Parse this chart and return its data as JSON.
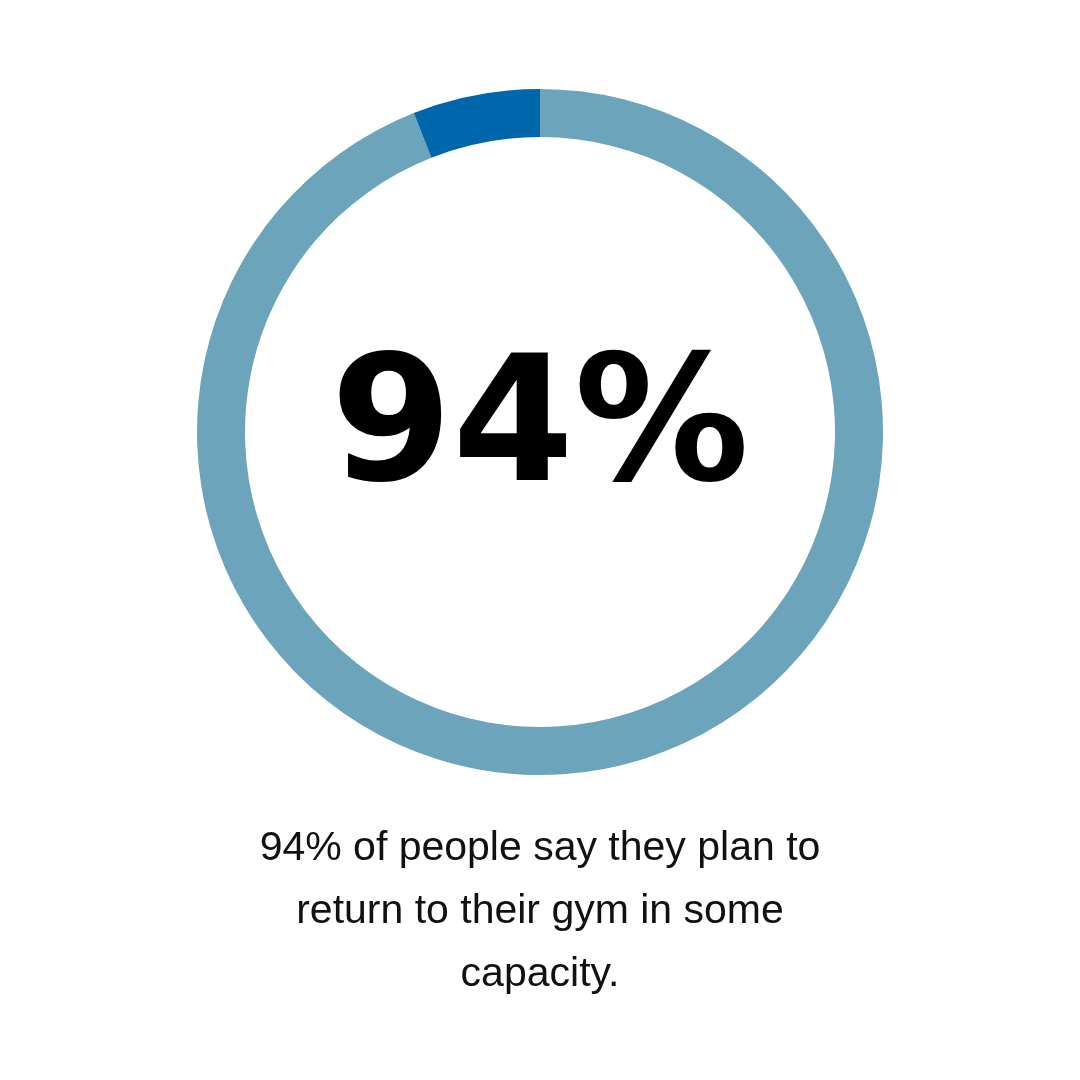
{
  "chart_data": {
    "type": "donut",
    "categories": [
      null,
      null
    ],
    "values": [
      94,
      6
    ],
    "colors": [
      "#6ca4bb",
      "#0067ac"
    ],
    "value_labels": [
      "94%",
      null
    ],
    "annotations": [
      "94% of people say they plan to return to their gym in some capacity."
    ]
  }
}
